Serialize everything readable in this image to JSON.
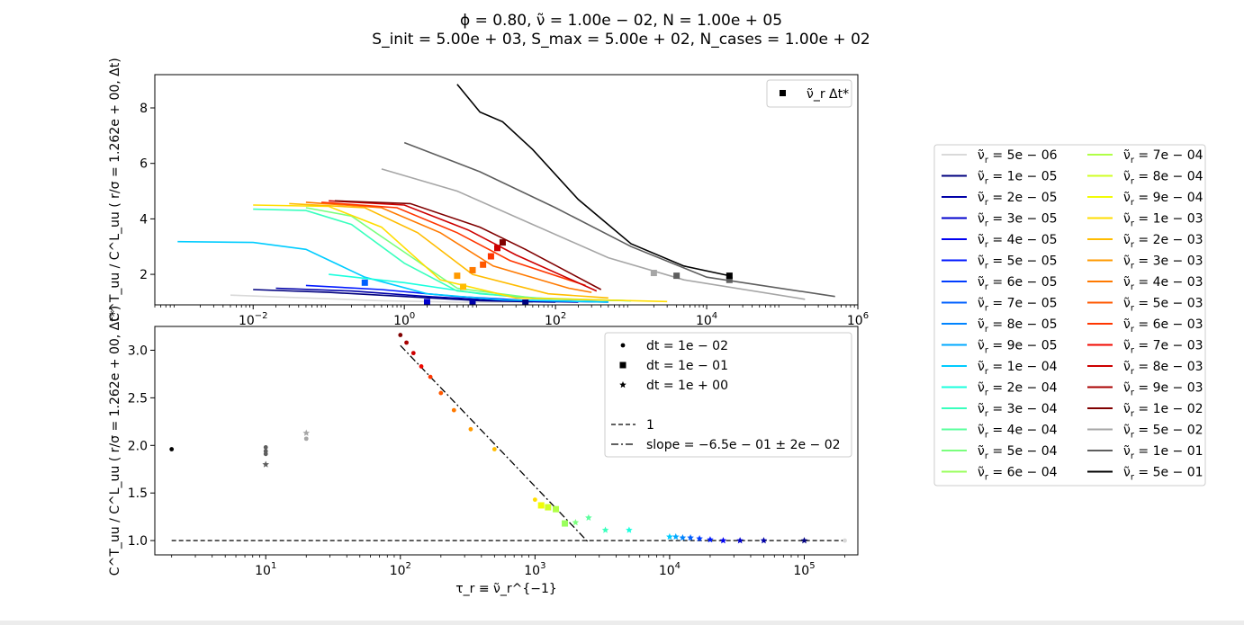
{
  "title": {
    "line1": "ϕ = 0.80, ν̃ = 1.00e − 02, N = 1.00e + 05",
    "line2": "S_init = 5.00e + 03, S_max = 5.00e + 02, N_cases = 1.00e + 02"
  },
  "legend_right": {
    "prefix": "ν̃",
    "sub": "r",
    "entries": [
      {
        "label": "= 5e − 06",
        "color": "#d9d9d9"
      },
      {
        "label": "= 1e − 05",
        "color": "#00007f"
      },
      {
        "label": "= 2e − 05",
        "color": "#0000a8"
      },
      {
        "label": "= 3e − 05",
        "color": "#0000cd"
      },
      {
        "label": "= 4e − 05",
        "color": "#0000f1"
      },
      {
        "label": "= 5e − 05",
        "color": "#0018ff"
      },
      {
        "label": "= 6e − 05",
        "color": "#003cff"
      },
      {
        "label": "= 7e − 05",
        "color": "#0060ff"
      },
      {
        "label": "= 8e − 05",
        "color": "#0084ff"
      },
      {
        "label": "= 9e − 05",
        "color": "#00a8ff"
      },
      {
        "label": "= 1e − 04",
        "color": "#00ccff"
      },
      {
        "label": "= 2e − 04",
        "color": "#19ffde"
      },
      {
        "label": "= 3e − 04",
        "color": "#39ffbd"
      },
      {
        "label": "= 4e − 04",
        "color": "#5aff9d"
      },
      {
        "label": "= 5e − 04",
        "color": "#7aff7d"
      },
      {
        "label": "= 6e − 04",
        "color": "#9aff5d"
      },
      {
        "label": "= 7e − 04",
        "color": "#b0ff46"
      },
      {
        "label": "= 8e − 04",
        "color": "#d0ff26"
      },
      {
        "label": "= 9e − 04",
        "color": "#f1fc06"
      },
      {
        "label": "= 1e − 03",
        "color": "#ffdd00"
      },
      {
        "label": "= 2e − 03",
        "color": "#ffbc00"
      },
      {
        "label": "= 3e − 03",
        "color": "#ff9a00"
      },
      {
        "label": "= 4e − 03",
        "color": "#ff7900"
      },
      {
        "label": "= 5e − 03",
        "color": "#ff5800"
      },
      {
        "label": "= 6e − 03",
        "color": "#ff3600"
      },
      {
        "label": "= 7e − 03",
        "color": "#f10800"
      },
      {
        "label": "= 8e − 03",
        "color": "#cd0000"
      },
      {
        "label": "= 9e − 03",
        "color": "#a80000"
      },
      {
        "label": "= 1e − 02",
        "color": "#800000"
      },
      {
        "label": "= 5e − 02",
        "color": "#a6a6a6"
      },
      {
        "label": "= 1e − 01",
        "color": "#5e5e5e"
      },
      {
        "label": "= 5e − 01",
        "color": "#000000"
      }
    ]
  },
  "chart_data": [
    {
      "type": "line",
      "xscale": "log",
      "xlim": [
        0.0005,
        1000000
      ],
      "ylim": [
        0.9,
        9.2
      ],
      "xticks": [
        0.01,
        1,
        100,
        10000,
        1000000
      ],
      "xtick_labels": [
        [
          "10",
          "−2"
        ],
        [
          "10",
          "0"
        ],
        [
          "10",
          "2"
        ],
        [
          "10",
          "4"
        ],
        [
          "10",
          "6"
        ]
      ],
      "yticks": [
        2,
        4,
        6,
        8
      ],
      "ylabel": "C^T_uu / C^L_uu ( r/σ = 1.262e + 00, Δt)",
      "legend": {
        "label": "ν̃_r Δt*",
        "marker": "square",
        "location": "upper right"
      },
      "series": [
        {
          "name": "ν̃_r = 5e − 06",
          "color": "#d9d9d9",
          "x": [
            0.005,
            0.05,
            0.5,
            5,
            50
          ],
          "y": [
            1.25,
            1.15,
            1.05,
            1.0,
            0.98
          ]
        },
        {
          "name": "ν̃_r = 1e − 05",
          "color": "#00007f",
          "x": [
            0.01,
            0.1,
            1,
            10,
            100
          ],
          "y": [
            1.45,
            1.35,
            1.2,
            1.05,
            1.0
          ]
        },
        {
          "name": "ν̃_r = 2e − 05",
          "color": "#0000a8",
          "x": [
            0.02,
            0.2,
            2,
            20,
            200
          ],
          "y": [
            1.5,
            1.4,
            1.2,
            1.05,
            1.0
          ]
        },
        {
          "name": "ν̃_r = 5e − 05",
          "color": "#0018ff",
          "x": [
            0.05,
            0.5,
            5,
            50,
            500
          ],
          "y": [
            1.6,
            1.45,
            1.2,
            1.05,
            1.0
          ]
        },
        {
          "name": "ν̃_r = 1e − 04",
          "color": "#00ccff",
          "x": [
            0.001,
            0.01,
            0.05,
            0.3,
            2,
            20,
            500
          ],
          "y": [
            3.18,
            3.15,
            2.9,
            1.9,
            1.3,
            1.08,
            1.0
          ]
        },
        {
          "name": "ν̃_r = 2e − 04",
          "color": "#19ffde",
          "x": [
            0.1,
            1,
            10,
            100,
            1000
          ],
          "y": [
            2.0,
            1.7,
            1.3,
            1.1,
            1.05
          ]
        },
        {
          "name": "ν̃_r = 3e − 04",
          "color": "#39ffbd",
          "x": [
            0.01,
            0.05,
            0.2,
            1,
            5,
            50,
            1000
          ],
          "y": [
            4.35,
            4.3,
            3.8,
            2.4,
            1.4,
            1.12,
            1.05
          ]
        },
        {
          "name": "ν̃_r = 5e − 04",
          "color": "#7aff7d",
          "x": [
            0.05,
            0.2,
            1,
            5,
            50,
            1000
          ],
          "y": [
            4.4,
            4.1,
            2.8,
            1.5,
            1.15,
            1.05
          ]
        },
        {
          "name": "ν̃_r = 1e − 03",
          "color": "#ffdd00",
          "x": [
            0.01,
            0.1,
            0.5,
            3,
            30,
            3000
          ],
          "y": [
            4.5,
            4.45,
            3.7,
            1.8,
            1.15,
            1.02
          ]
        },
        {
          "name": "ν̃_r = 2e − 03",
          "color": "#ffbc00",
          "x": [
            0.03,
            0.3,
            1.5,
            8,
            80,
            500
          ],
          "y": [
            4.55,
            4.4,
            3.5,
            2.0,
            1.3,
            1.15
          ]
        },
        {
          "name": "ν̃_r = 4e − 03",
          "color": "#ff7900",
          "x": [
            0.05,
            0.5,
            3,
            15,
            150,
            300
          ],
          "y": [
            4.6,
            4.4,
            3.5,
            2.3,
            1.5,
            1.35
          ]
        },
        {
          "name": "ν̃_r = 6e − 03",
          "color": "#ff3600",
          "x": [
            0.08,
            0.8,
            5,
            25,
            250
          ],
          "y": [
            4.6,
            4.4,
            3.5,
            2.5,
            1.6
          ]
        },
        {
          "name": "ν̃_r = 8e − 03",
          "color": "#cd0000",
          "x": [
            0.1,
            1,
            7,
            30,
            350
          ],
          "y": [
            4.65,
            4.5,
            3.6,
            2.7,
            1.4
          ]
        },
        {
          "name": "ν̃_r = 1e − 02",
          "color": "#800000",
          "x": [
            0.12,
            1.2,
            10,
            40,
            400
          ],
          "y": [
            4.65,
            4.55,
            3.7,
            2.9,
            1.45
          ]
        },
        {
          "name": "ν̃_r = 5e − 02",
          "color": "#a6a6a6",
          "x": [
            0.5,
            5,
            50,
            500,
            5000,
            200000
          ],
          "y": [
            5.8,
            5.0,
            3.8,
            2.6,
            1.8,
            1.1
          ]
        },
        {
          "name": "ν̃_r = 1e − 01",
          "color": "#5e5e5e",
          "x": [
            1,
            10,
            100,
            1000,
            10000,
            500000
          ],
          "y": [
            6.75,
            5.7,
            4.4,
            3.0,
            1.9,
            1.2
          ]
        },
        {
          "name": "ν̃_r = 5e − 01",
          "color": "#000000",
          "x": [
            5,
            10,
            20,
            50,
            200,
            1000,
            5000,
            20000
          ],
          "y": [
            8.85,
            7.85,
            7.5,
            6.5,
            4.7,
            3.1,
            2.3,
            1.95
          ]
        }
      ],
      "markers": [
        {
          "x": 0.3,
          "y": 1.7,
          "color": "#0060ff"
        },
        {
          "x": 2,
          "y": 1.0,
          "color": "#0000cd"
        },
        {
          "x": 8,
          "y": 0.98,
          "color": "#0000a8"
        },
        {
          "x": 40,
          "y": 0.98,
          "color": "#00007f"
        },
        {
          "x": 5,
          "y": 1.95,
          "color": "#ff9a00"
        },
        {
          "x": 6,
          "y": 1.55,
          "color": "#ffbc00"
        },
        {
          "x": 8,
          "y": 2.15,
          "color": "#ff7900"
        },
        {
          "x": 11,
          "y": 2.35,
          "color": "#ff5800"
        },
        {
          "x": 14,
          "y": 2.65,
          "color": "#ff3600"
        },
        {
          "x": 17,
          "y": 2.95,
          "color": "#cd0000"
        },
        {
          "x": 20,
          "y": 3.15,
          "color": "#800000"
        },
        {
          "x": 2000,
          "y": 2.05,
          "color": "#a6a6a6"
        },
        {
          "x": 4000,
          "y": 1.95,
          "color": "#5e5e5e"
        },
        {
          "x": 20000,
          "y": 1.8,
          "color": "#5e5e5e"
        },
        {
          "x": 20000,
          "y": 1.95,
          "color": "#000000"
        }
      ]
    },
    {
      "type": "scatter",
      "xscale": "log",
      "xlim": [
        1.5,
        250000
      ],
      "ylim": [
        0.85,
        3.25
      ],
      "xticks": [
        10,
        100,
        1000,
        10000,
        100000
      ],
      "xtick_labels": [
        [
          "10",
          "1"
        ],
        [
          "10",
          "2"
        ],
        [
          "10",
          "3"
        ],
        [
          "10",
          "4"
        ],
        [
          "10",
          "5"
        ]
      ],
      "yticks": [
        1.0,
        1.5,
        2.0,
        2.5,
        3.0
      ],
      "ytick_labels": [
        "1.0",
        "1.5",
        "2.0",
        "2.5",
        "3.0"
      ],
      "xlabel": "τ_r ≡ ν̃_r^{−1}",
      "ylabel": "C^T_uu / C^L_uu ( r/σ = 1.262e + 00, Δt*)",
      "legend": {
        "location": "upper right",
        "entries": [
          {
            "label": "dt = 1e − 02",
            "marker": "dot"
          },
          {
            "label": "dt = 1e − 01",
            "marker": "square"
          },
          {
            "label": "dt = 1e + 00",
            "marker": "star"
          },
          {
            "label": "",
            "marker": "none"
          },
          {
            "label": "1",
            "line": "dashed"
          },
          {
            "label": "slope = −6.5e − 01 ± 2e − 02",
            "line": "dashdot"
          }
        ]
      },
      "reference_line": {
        "x": [
          2,
          200000
        ],
        "y": [
          1.0,
          1.0
        ]
      },
      "fit_line": {
        "x": [
          100,
          2500
        ],
        "y": [
          3.05,
          0.98
        ]
      },
      "points": [
        {
          "x": 2,
          "y": 1.96,
          "color": "#000000",
          "m": "dot"
        },
        {
          "x": 10,
          "y": 1.98,
          "color": "#5e5e5e",
          "m": "dot"
        },
        {
          "x": 10,
          "y": 1.94,
          "color": "#5e5e5e",
          "m": "dot"
        },
        {
          "x": 10,
          "y": 1.91,
          "color": "#5e5e5e",
          "m": "dot"
        },
        {
          "x": 10,
          "y": 1.8,
          "color": "#5e5e5e",
          "m": "star"
        },
        {
          "x": 20,
          "y": 2.07,
          "color": "#a6a6a6",
          "m": "dot"
        },
        {
          "x": 20,
          "y": 2.13,
          "color": "#a6a6a6",
          "m": "star"
        },
        {
          "x": 100,
          "y": 3.16,
          "color": "#800000",
          "m": "dot"
        },
        {
          "x": 111,
          "y": 3.08,
          "color": "#a80000",
          "m": "dot"
        },
        {
          "x": 125,
          "y": 2.97,
          "color": "#cd0000",
          "m": "dot"
        },
        {
          "x": 143,
          "y": 2.83,
          "color": "#f10800",
          "m": "dot"
        },
        {
          "x": 167,
          "y": 2.72,
          "color": "#ff3600",
          "m": "dot"
        },
        {
          "x": 200,
          "y": 2.55,
          "color": "#ff5800",
          "m": "dot"
        },
        {
          "x": 250,
          "y": 2.37,
          "color": "#ff7900",
          "m": "dot"
        },
        {
          "x": 333,
          "y": 2.17,
          "color": "#ff9a00",
          "m": "dot"
        },
        {
          "x": 500,
          "y": 1.96,
          "color": "#ffbc00",
          "m": "dot"
        },
        {
          "x": 1000,
          "y": 1.43,
          "color": "#ffdd00",
          "m": "dot"
        },
        {
          "x": 1111,
          "y": 1.37,
          "color": "#f1fc06",
          "m": "square"
        },
        {
          "x": 1250,
          "y": 1.35,
          "color": "#d0ff26",
          "m": "square"
        },
        {
          "x": 1429,
          "y": 1.33,
          "color": "#b0ff46",
          "m": "square"
        },
        {
          "x": 1667,
          "y": 1.18,
          "color": "#9aff5d",
          "m": "square"
        },
        {
          "x": 2000,
          "y": 1.19,
          "color": "#7aff7d",
          "m": "star"
        },
        {
          "x": 2500,
          "y": 1.24,
          "color": "#5aff9d",
          "m": "star"
        },
        {
          "x": 3333,
          "y": 1.11,
          "color": "#39ffbd",
          "m": "star"
        },
        {
          "x": 5000,
          "y": 1.11,
          "color": "#19ffde",
          "m": "star"
        },
        {
          "x": 10000,
          "y": 1.04,
          "color": "#00ccff",
          "m": "star"
        },
        {
          "x": 11111,
          "y": 1.04,
          "color": "#00a8ff",
          "m": "star"
        },
        {
          "x": 12500,
          "y": 1.03,
          "color": "#0084ff",
          "m": "star"
        },
        {
          "x": 14286,
          "y": 1.03,
          "color": "#0060ff",
          "m": "star"
        },
        {
          "x": 16667,
          "y": 1.02,
          "color": "#003cff",
          "m": "star"
        },
        {
          "x": 20000,
          "y": 1.01,
          "color": "#0018ff",
          "m": "star"
        },
        {
          "x": 25000,
          "y": 1.0,
          "color": "#0000f1",
          "m": "star"
        },
        {
          "x": 33333,
          "y": 1.0,
          "color": "#0000cd",
          "m": "star"
        },
        {
          "x": 50000,
          "y": 1.0,
          "color": "#0000a8",
          "m": "star"
        },
        {
          "x": 100000,
          "y": 1.0,
          "color": "#00007f",
          "m": "star"
        },
        {
          "x": 200000,
          "y": 1.0,
          "color": "#d9d9d9",
          "m": "dot"
        }
      ]
    }
  ]
}
